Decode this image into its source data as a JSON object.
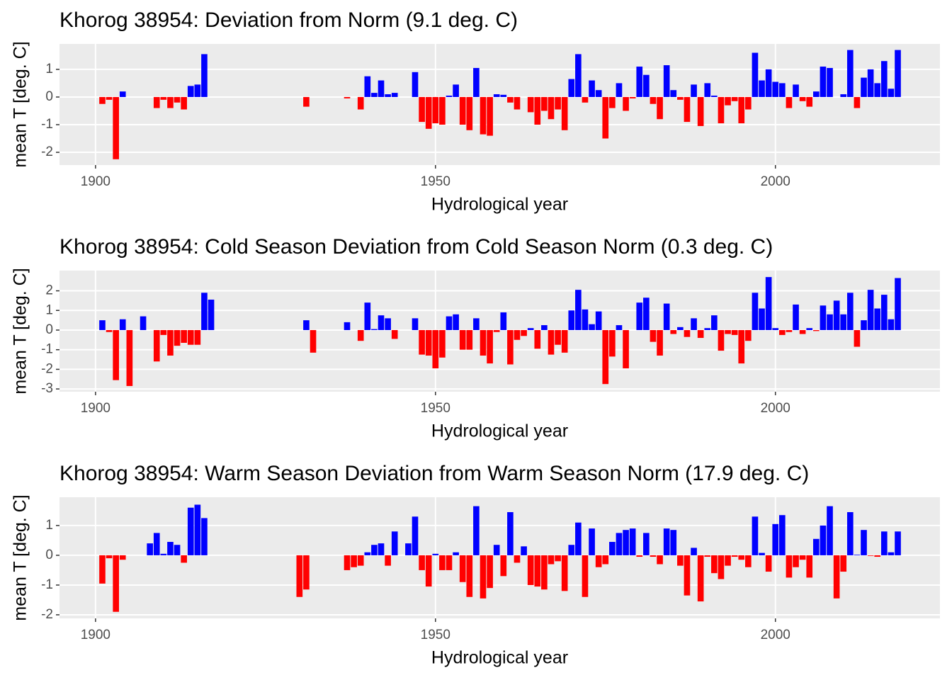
{
  "chart_data": [
    {
      "type": "bar",
      "title": "Khorog 38954: Deviation from Norm (9.1 deg. C)",
      "x_label": "Hydrological year",
      "y_label": "mean T [deg. C]",
      "x": [
        1901,
        1902,
        1903,
        1904,
        1909,
        1910,
        1911,
        1912,
        1913,
        1914,
        1915,
        1916,
        1931,
        1937,
        1939,
        1940,
        1941,
        1942,
        1943,
        1944,
        1947,
        1948,
        1949,
        1950,
        1951,
        1952,
        1953,
        1954,
        1955,
        1956,
        1957,
        1958,
        1959,
        1960,
        1961,
        1962,
        1964,
        1965,
        1966,
        1967,
        1968,
        1969,
        1970,
        1971,
        1972,
        1973,
        1974,
        1975,
        1976,
        1977,
        1978,
        1979,
        1980,
        1981,
        1982,
        1983,
        1984,
        1985,
        1986,
        1987,
        1988,
        1989,
        1990,
        1991,
        1992,
        1993,
        1994,
        1995,
        1996,
        1997,
        1998,
        1999,
        2000,
        2001,
        2002,
        2003,
        2004,
        2005,
        2006,
        2007,
        2008,
        2010,
        2011,
        2012,
        2013,
        2014,
        2015,
        2016,
        2017,
        2018
      ],
      "values": [
        -0.25,
        -0.1,
        -2.25,
        0.2,
        -0.4,
        -0.1,
        -0.4,
        -0.2,
        -0.45,
        0.4,
        0.45,
        1.55,
        -0.35,
        -0.05,
        -0.45,
        0.75,
        0.15,
        0.6,
        0.1,
        0.15,
        0.9,
        -0.9,
        -1.15,
        -0.95,
        -1.0,
        0.05,
        0.45,
        -1.0,
        -1.2,
        1.05,
        -1.35,
        -1.4,
        0.1,
        0.08,
        -0.2,
        -0.45,
        -0.55,
        -1.0,
        -0.5,
        -0.8,
        -0.45,
        -1.2,
        0.65,
        1.55,
        -0.2,
        0.6,
        0.25,
        -1.5,
        -0.4,
        0.5,
        -0.5,
        -0.05,
        1.1,
        0.8,
        -0.25,
        -0.8,
        1.15,
        0.25,
        -0.1,
        -0.9,
        0.45,
        -1.05,
        0.5,
        0.05,
        -0.95,
        -0.3,
        -0.15,
        -0.95,
        -0.45,
        1.6,
        0.6,
        1.0,
        0.55,
        0.5,
        -0.4,
        0.45,
        -0.15,
        -0.35,
        0.2,
        1.1,
        1.05,
        0.1,
        1.7,
        -0.4,
        0.7,
        1.0,
        0.5,
        1.3,
        0.3,
        1.7
      ],
      "xlim": [
        1894.7,
        2024.2
      ],
      "xticks": [
        1900,
        1950,
        2000
      ],
      "ylim": [
        -2.46,
        1.92
      ],
      "yticks": [
        -2,
        -1,
        0,
        1
      ],
      "positive_color": "#0000ff",
      "negative_color": "#ff0000",
      "grid": true
    },
    {
      "type": "bar",
      "title": "Khorog 38954: Cold Season Deviation from Cold Season Norm (0.3 deg. C)",
      "x_label": "Hydrological year",
      "y_label": "mean T [deg. C]",
      "x": [
        1901,
        1902,
        1903,
        1904,
        1905,
        1907,
        1909,
        1910,
        1911,
        1912,
        1913,
        1914,
        1915,
        1916,
        1917,
        1931,
        1932,
        1937,
        1939,
        1940,
        1941,
        1942,
        1943,
        1944,
        1947,
        1948,
        1949,
        1950,
        1951,
        1952,
        1953,
        1954,
        1955,
        1956,
        1957,
        1958,
        1959,
        1960,
        1961,
        1962,
        1963,
        1964,
        1965,
        1966,
        1967,
        1968,
        1969,
        1970,
        1971,
        1972,
        1973,
        1974,
        1975,
        1976,
        1977,
        1978,
        1980,
        1981,
        1982,
        1983,
        1984,
        1985,
        1986,
        1987,
        1988,
        1989,
        1990,
        1991,
        1992,
        1993,
        1994,
        1995,
        1996,
        1997,
        1998,
        1999,
        2000,
        2001,
        2002,
        2003,
        2004,
        2005,
        2006,
        2007,
        2008,
        2009,
        2010,
        2011,
        2012,
        2013,
        2014,
        2015,
        2016,
        2017,
        2018
      ],
      "values": [
        0.5,
        -0.1,
        -2.55,
        0.55,
        -2.85,
        0.7,
        -1.6,
        -0.25,
        -1.3,
        -0.8,
        -0.65,
        -0.75,
        -0.75,
        1.9,
        1.55,
        0.5,
        -1.15,
        0.4,
        -0.55,
        1.4,
        0.05,
        0.75,
        0.6,
        -0.45,
        0.6,
        -1.25,
        -1.3,
        -1.95,
        -1.4,
        0.7,
        0.8,
        -1.0,
        -1.0,
        0.6,
        -1.3,
        -1.7,
        -0.1,
        0.9,
        -1.75,
        -0.5,
        -0.3,
        0.1,
        -0.95,
        0.25,
        -1.25,
        -0.75,
        -1.15,
        1.0,
        2.05,
        1.05,
        0.3,
        0.95,
        -2.75,
        -1.35,
        0.25,
        -1.95,
        1.4,
        1.65,
        -0.6,
        -1.3,
        1.35,
        -0.2,
        0.15,
        -0.35,
        0.6,
        -0.4,
        0.1,
        0.75,
        -1.05,
        -0.2,
        -0.25,
        -1.7,
        -0.55,
        1.9,
        1.1,
        2.7,
        0.1,
        -0.25,
        -0.1,
        1.3,
        -0.2,
        0.1,
        -0.05,
        1.25,
        0.8,
        1.5,
        0.8,
        1.9,
        -0.85,
        0.5,
        2.05,
        1.1,
        1.8,
        0.55,
        2.65
      ],
      "xlim": [
        1894.7,
        2024.2
      ],
      "xticks": [
        1900,
        1950,
        2000
      ],
      "ylim": [
        -3.14,
        3.03
      ],
      "yticks": [
        -3,
        -2,
        -1,
        0,
        1,
        2
      ],
      "positive_color": "#0000ff",
      "negative_color": "#ff0000",
      "grid": true
    },
    {
      "type": "bar",
      "title": "Khorog 38954: Warm Season Deviation from Warm Season Norm (17.9 deg. C)",
      "x_label": "Hydrological year",
      "y_label": "mean T [deg. C]",
      "x": [
        1901,
        1902,
        1903,
        1904,
        1908,
        1909,
        1910,
        1911,
        1912,
        1913,
        1914,
        1915,
        1916,
        1930,
        1931,
        1937,
        1938,
        1939,
        1940,
        1941,
        1942,
        1943,
        1944,
        1946,
        1947,
        1948,
        1949,
        1950,
        1951,
        1952,
        1953,
        1954,
        1955,
        1956,
        1957,
        1958,
        1959,
        1960,
        1961,
        1962,
        1963,
        1964,
        1965,
        1966,
        1967,
        1968,
        1969,
        1970,
        1971,
        1972,
        1973,
        1974,
        1975,
        1976,
        1977,
        1978,
        1979,
        1980,
        1981,
        1982,
        1983,
        1984,
        1985,
        1986,
        1987,
        1988,
        1989,
        1990,
        1991,
        1992,
        1993,
        1994,
        1995,
        1996,
        1997,
        1998,
        1999,
        2000,
        2001,
        2002,
        2003,
        2004,
        2005,
        2006,
        2007,
        2008,
        2009,
        2010,
        2011,
        2012,
        2013,
        2014,
        2015,
        2016,
        2017,
        2018
      ],
      "values": [
        -0.95,
        -0.1,
        -1.9,
        -0.15,
        0.4,
        0.75,
        0.05,
        0.45,
        0.35,
        -0.25,
        1.6,
        1.7,
        1.25,
        -1.4,
        -1.15,
        -0.5,
        -0.4,
        -0.35,
        0.1,
        0.35,
        0.4,
        -0.35,
        0.8,
        0.4,
        1.3,
        -0.5,
        -1.05,
        0.05,
        -0.5,
        -0.5,
        0.1,
        -0.9,
        -1.4,
        1.65,
        -1.45,
        -1.1,
        0.35,
        -0.7,
        1.45,
        -0.25,
        0.3,
        -1.0,
        -1.05,
        -1.15,
        -0.3,
        -0.2,
        -1.2,
        0.35,
        1.1,
        -1.4,
        0.9,
        -0.4,
        -0.3,
        0.45,
        0.75,
        0.85,
        0.9,
        -0.05,
        0.75,
        -0.05,
        -0.3,
        0.9,
        0.85,
        -0.35,
        -1.35,
        0.25,
        -1.55,
        -0.05,
        -0.6,
        -0.8,
        -0.35,
        -0.05,
        -0.15,
        -0.4,
        1.3,
        0.08,
        -0.55,
        1.05,
        1.35,
        -0.75,
        -0.4,
        -0.15,
        -0.75,
        0.55,
        1.0,
        1.65,
        -1.45,
        -0.55,
        1.45,
        0.02,
        0.85,
        -0.02,
        -0.05,
        0.8,
        0.1,
        0.8
      ],
      "xlim": [
        1894.7,
        2024.2
      ],
      "xticks": [
        1900,
        1950,
        2000
      ],
      "ylim": [
        -2.12,
        1.95
      ],
      "yticks": [
        -2,
        -1,
        0,
        1
      ],
      "positive_color": "#0000ff",
      "negative_color": "#ff0000",
      "grid": true
    }
  ]
}
